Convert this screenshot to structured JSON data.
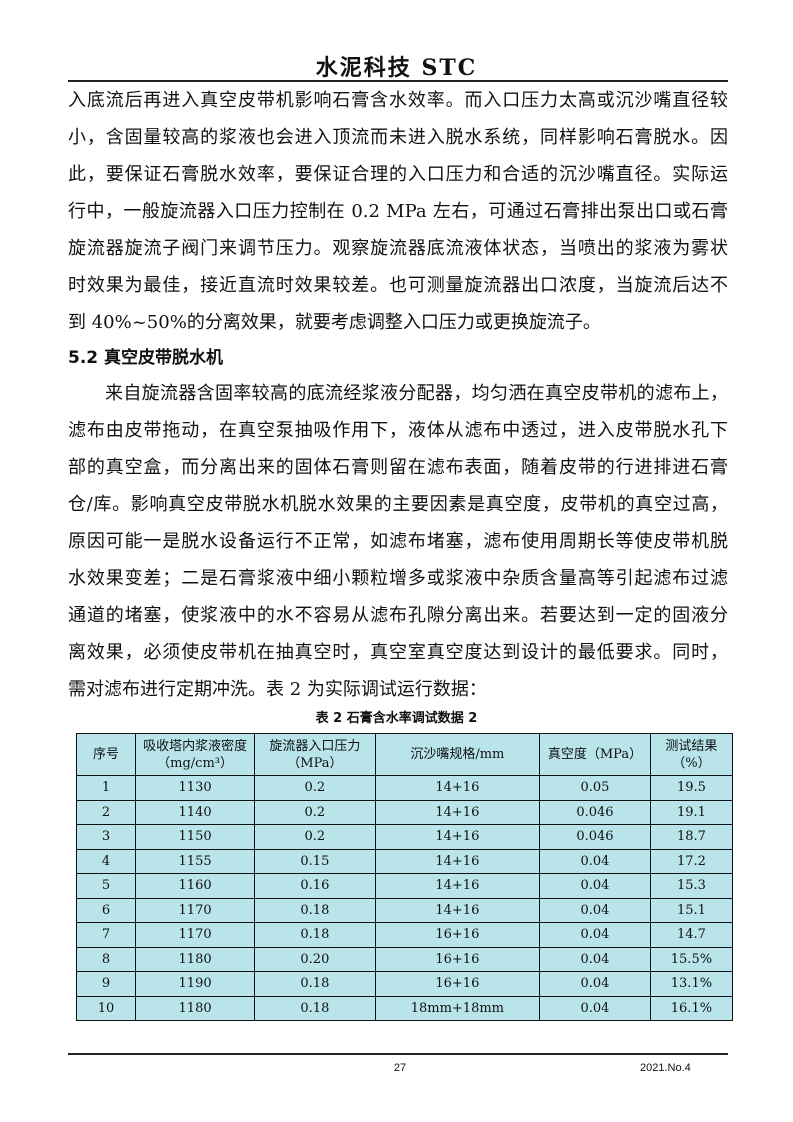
{
  "header": {
    "title": "水泥科技  STC"
  },
  "paragraph1": [
    "入底流后再进入真空皮带机影响石膏含水效率。而入口压力太高或沉沙嘴直径较",
    "小，含固量较高的浆液也会进入顶流而未进入脱水系统，同样影响石膏脱水。因",
    "此，要保证石膏脱水效率，要保证合理的入口压力和合适的沉沙嘴直径。实际运",
    "行中，一般旋流器入口压力控制在 0.2 MPa 左右，可通过石膏排出泵出口或石膏",
    "旋流器旋流子阀门来调节压力。观察旋流器底流液体状态，当喷出的浆液为雾状",
    "时效果为最佳，接近直流时效果较差。也可测量旋流器出口浓度，当旋流后达不",
    "到 40%~50%的分离效果，就要考虑调整入口压力或更换旋流子。"
  ],
  "section_heading": "5.2  真空皮带脱水机",
  "paragraph2": [
    "来自旋流器含固率较高的底流经浆液分配器，均匀洒在真空皮带机的滤布上，",
    "滤布由皮带拖动，在真空泵抽吸作用下，液体从滤布中透过，进入皮带脱水孔下",
    "部的真空盒，而分离出来的固体石膏则留在滤布表面，随着皮带的行进排进石膏",
    "仓/库。影响真空皮带脱水机脱水效果的主要因素是真空度，皮带机的真空过高，",
    "原因可能一是脱水设备运行不正常，如滤布堵塞，滤布使用周期长等使皮带机脱",
    "水效果变差；二是石膏浆液中细小颗粒增多或浆液中杂质含量高等引起滤布过滤",
    "通道的堵塞，使浆液中的水不容易从滤布孔隙分离出来。若要达到一定的固液分",
    "离效果，必须使皮带机在抽真空时，真空室真空度达到设计的最低要求。同时，",
    "需对滤布进行定期冲洗。表 2  为实际调试运行数据："
  ],
  "table": {
    "caption": "表 2    石膏含水率调试数据 2",
    "background": "#b8e4ea",
    "headers": [
      {
        "l1": "序号",
        "l2": ""
      },
      {
        "l1": "吸收塔内浆液密度",
        "l2": "（mg/cm³）"
      },
      {
        "l1": "旋流器入口压力",
        "l2": "（MPa）"
      },
      {
        "l1": "沉沙嘴规格/mm",
        "l2": ""
      },
      {
        "l1": "真空度（MPa）",
        "l2": ""
      },
      {
        "l1": "测试结果",
        "l2": "（%）"
      }
    ],
    "rows": [
      [
        "1",
        "1130",
        "0.2",
        "14+16",
        "0.05",
        "19.5"
      ],
      [
        "2",
        "1140",
        "0.2",
        "14+16",
        "0.046",
        "19.1"
      ],
      [
        "3",
        "1150",
        "0.2",
        "14+16",
        "0.046",
        "18.7"
      ],
      [
        "4",
        "1155",
        "0.15",
        "14+16",
        "0.04",
        "17.2"
      ],
      [
        "5",
        "1160",
        "0.16",
        "14+16",
        "0.04",
        "15.3"
      ],
      [
        "6",
        "1170",
        "0.18",
        "14+16",
        "0.04",
        "15.1"
      ],
      [
        "7",
        "1170",
        "0.18",
        "16+16",
        "0.04",
        "14.7"
      ],
      [
        "8",
        "1180",
        "0.20",
        "16+16",
        "0.04",
        "15.5%"
      ],
      [
        "9",
        "1190",
        "0.18",
        "16+16",
        "0.04",
        "13.1%"
      ],
      [
        "10",
        "1180",
        "0.18",
        "18mm+18mm",
        "0.04",
        "16.1%"
      ]
    ]
  },
  "footer": {
    "page": "27",
    "issue": "2021.No.4"
  }
}
